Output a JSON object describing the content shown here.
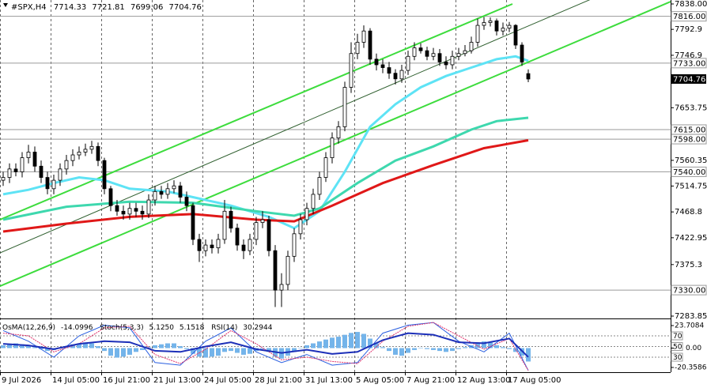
{
  "chart_data": {
    "type": "candlestick",
    "symbol": "#SPX,H4",
    "xlim": [
      -0.5,
      105.5
    ],
    "x_labels": [
      {
        "value": -0.5,
        "label": "9 Jul 2026"
      },
      {
        "value": 7.5,
        "label": "14 Jul 05:00"
      },
      {
        "value": 15.5,
        "label": "16 Jul 21:00"
      },
      {
        "value": 23.5,
        "label": "21 Jul 13:00"
      },
      {
        "value": 31.5,
        "label": "24 Jul 05:00"
      },
      {
        "value": 39.5,
        "label": "28 Jul 21:00"
      },
      {
        "value": 47.5,
        "label": "31 Jul 13:00"
      },
      {
        "value": 55.5,
        "label": "5 Aug 05:00"
      },
      {
        "value": 63.5,
        "label": "7 Aug 21:00"
      },
      {
        "value": 71.5,
        "label": "12 Aug 13:00"
      },
      {
        "value": 79.5,
        "label": "17 Aug 05:00"
      }
    ],
    "ylim": [
      7283.85,
      7838
    ],
    "yticks": [
      {
        "value": 7838,
        "label": "7838.00"
      },
      7792.9,
      7746.9,
      7653.75,
      7560.35,
      7514.75,
      7468.8,
      7422.95,
      7375.3,
      7283.85
    ],
    "levels": [
      {
        "value": 7816,
        "label": "7816.00"
      },
      {
        "value": 7733,
        "label": "7733.00"
      },
      {
        "value": 7615,
        "label": "7615.00"
      },
      {
        "value": 7598,
        "label": "7598.00"
      },
      {
        "value": 7540,
        "label": "7540.00"
      },
      {
        "value": 7330,
        "label": "7330.00"
      }
    ],
    "candle_color": "#000000",
    "open": [
      7525,
      7530,
      7545,
      7540,
      7565,
      7575,
      7550,
      7530,
      7510,
      7525,
      7545,
      7560,
      7570,
      7575,
      7580,
      7585,
      7560,
      7510,
      7480,
      7470,
      7465,
      7475,
      7470,
      7465,
      7490,
      7505,
      7500,
      7510,
      7515,
      7495,
      7480,
      7420,
      7400,
      7410,
      7405,
      7420,
      7470,
      7440,
      7410,
      7400,
      7420,
      7450,
      7455,
      7400,
      7330,
      7340,
      7390,
      7430,
      7455,
      7475,
      7500,
      7530,
      7565,
      7600,
      7620,
      7690,
      7750,
      7770,
      7790,
      7740,
      7730,
      7725,
      7715,
      7705,
      7720,
      7745,
      7760,
      7755,
      7745,
      7750,
      7735,
      7730,
      7745,
      7750,
      7755,
      7770,
      7800,
      7805,
      7808,
      7790,
      7795,
      7800,
      7765,
      7714.33
    ],
    "high": [
      7540,
      7555,
      7555,
      7575,
      7588,
      7585,
      7560,
      7540,
      7535,
      7555,
      7570,
      7580,
      7585,
      7590,
      7595,
      7592,
      7565,
      7515,
      7490,
      7480,
      7485,
      7485,
      7480,
      7500,
      7515,
      7515,
      7520,
      7525,
      7522,
      7505,
      7485,
      7430,
      7420,
      7420,
      7430,
      7490,
      7478,
      7448,
      7420,
      7430,
      7460,
      7470,
      7462,
      7410,
      7360,
      7400,
      7440,
      7465,
      7485,
      7510,
      7540,
      7575,
      7610,
      7630,
      7700,
      7770,
      7785,
      7800,
      7795,
      7750,
      7740,
      7735,
      7722,
      7730,
      7755,
      7770,
      7768,
      7762,
      7760,
      7758,
      7745,
      7755,
      7760,
      7765,
      7780,
      7812,
      7815,
      7814,
      7812,
      7805,
      7806,
      7802,
      7770,
      7721.81
    ],
    "low": [
      7515,
      7520,
      7532,
      7530,
      7555,
      7540,
      7520,
      7500,
      7500,
      7515,
      7535,
      7550,
      7562,
      7568,
      7572,
      7550,
      7500,
      7470,
      7462,
      7455,
      7455,
      7460,
      7455,
      7458,
      7480,
      7492,
      7492,
      7502,
      7485,
      7470,
      7410,
      7380,
      7390,
      7395,
      7395,
      7412,
      7432,
      7400,
      7385,
      7392,
      7410,
      7440,
      7390,
      7300,
      7300,
      7330,
      7380,
      7420,
      7445,
      7465,
      7490,
      7522,
      7555,
      7590,
      7612,
      7680,
      7740,
      7760,
      7730,
      7720,
      7715,
      7705,
      7695,
      7698,
      7712,
      7738,
      7750,
      7738,
      7738,
      7728,
      7722,
      7722,
      7738,
      7745,
      7750,
      7762,
      7792,
      7798,
      7782,
      7782,
      7788,
      7758,
      7728,
      7699.06
    ],
    "close": [
      7530,
      7545,
      7540,
      7565,
      7575,
      7550,
      7530,
      7510,
      7525,
      7545,
      7560,
      7570,
      7575,
      7580,
      7585,
      7560,
      7510,
      7480,
      7470,
      7465,
      7475,
      7470,
      7465,
      7490,
      7505,
      7500,
      7510,
      7515,
      7495,
      7480,
      7420,
      7400,
      7410,
      7405,
      7420,
      7470,
      7440,
      7410,
      7400,
      7420,
      7450,
      7455,
      7400,
      7330,
      7340,
      7390,
      7430,
      7455,
      7475,
      7500,
      7530,
      7565,
      7600,
      7620,
      7690,
      7750,
      7770,
      7790,
      7740,
      7730,
      7725,
      7715,
      7705,
      7720,
      7745,
      7760,
      7755,
      7745,
      7750,
      7735,
      7730,
      7745,
      7750,
      7755,
      7770,
      7800,
      7805,
      7808,
      7790,
      7795,
      7800,
      7765,
      7735,
      7704.76
    ],
    "moving_averages": [
      {
        "color": "#5ee3f5",
        "x": [
          0,
          4,
          8,
          12,
          16,
          20,
          26,
          30,
          36,
          42,
          46,
          50,
          54,
          58,
          62,
          66,
          70,
          74,
          78,
          81,
          83
        ],
        "values": [
          7500,
          7508,
          7520,
          7530,
          7525,
          7510,
          7505,
          7495,
          7480,
          7460,
          7440,
          7470,
          7540,
          7620,
          7660,
          7690,
          7710,
          7725,
          7740,
          7745,
          7737
        ]
      },
      {
        "color": "#3ed8ae",
        "x": [
          0,
          10,
          20,
          30,
          40,
          46,
          50,
          56,
          62,
          68,
          74,
          78,
          83
        ],
        "values": [
          7455,
          7478,
          7487,
          7485,
          7470,
          7462,
          7475,
          7520,
          7560,
          7585,
          7615,
          7630,
          7636
        ]
      },
      {
        "color": "#e01818",
        "x": [
          0,
          10,
          20,
          30,
          40,
          46,
          52,
          60,
          68,
          76,
          83
        ],
        "values": [
          7434,
          7448,
          7460,
          7465,
          7455,
          7452,
          7480,
          7520,
          7552,
          7582,
          7596
        ]
      }
    ],
    "channels": [
      {
        "color": "#3ddc3d",
        "x": [
          -0.5,
          80.5
        ],
        "values": [
          7455,
          7838
        ]
      },
      {
        "color": "#3ddc3d",
        "x": [
          -0.5,
          105.5
        ],
        "values": [
          7337,
          7842
        ]
      },
      {
        "color": "#2f5f2f",
        "x": [
          -0.5,
          80.5,
          94.5
        ],
        "values": [
          7396,
          7787,
          7854
        ]
      }
    ],
    "indicator": {
      "ylim": [
        -20.3586,
        23.7084
      ],
      "yticks": [
        23.7084,
        {
          "value": 0,
          "label": "0.00"
        },
        -20.3586
      ],
      "y2lim": [
        0,
        100
      ],
      "levels": [
        70,
        50,
        30
      ],
      "osma": {
        "name": "OsMA(12,26,9)",
        "color": "#74b4ea",
        "values": [
          3,
          4,
          5,
          4,
          3,
          1,
          -1,
          -3,
          -2,
          0,
          2,
          4,
          5,
          6,
          5,
          2,
          -3,
          -8,
          -10,
          -9,
          -7,
          -4,
          -2,
          1,
          3,
          4,
          5,
          5,
          2,
          -1,
          -6,
          -9,
          -10,
          -9,
          -8,
          -4,
          -3,
          -5,
          -7,
          -6,
          -3,
          -1,
          -4,
          -9,
          -11,
          -8,
          -4,
          0,
          3,
          5,
          7,
          9,
          11,
          12,
          14,
          16,
          17,
          15,
          10,
          5,
          1,
          -3,
          -7,
          -8,
          -5,
          -2,
          0,
          -1,
          -2,
          -3,
          -4,
          -3,
          -1,
          1,
          3,
          6,
          7,
          6,
          3,
          1,
          -1,
          -4,
          -8,
          -14.0996
        ]
      },
      "stoch": {
        "name": "Stoch(5,3,3)",
        "x": [
          0,
          4,
          8,
          12,
          16,
          20,
          24,
          28,
          32,
          36,
          40,
          44,
          48,
          52,
          56,
          60,
          64,
          68,
          72,
          76,
          80,
          83
        ],
        "main": [
          80,
          60,
          30,
          70,
          90,
          85,
          20,
          15,
          60,
          85,
          40,
          20,
          35,
          15,
          20,
          75,
          90,
          95,
          60,
          40,
          75,
          5.125
        ],
        "main_label": "5.1250",
        "main_color": "#2a5fe0",
        "signal": [
          75,
          70,
          40,
          55,
          85,
          88,
          35,
          18,
          45,
          80,
          55,
          25,
          30,
          22,
          18,
          60,
          88,
          95,
          70,
          45,
          65,
          5.1518
        ],
        "signal_label": "5.1518",
        "signal_color": "#e0306a"
      },
      "rsi": {
        "name": "RSI(14)",
        "color": "#1c2fb8",
        "x": [
          0,
          4,
          8,
          12,
          16,
          20,
          24,
          28,
          32,
          36,
          40,
          44,
          48,
          52,
          56,
          60,
          64,
          68,
          72,
          76,
          80,
          83
        ],
        "values": [
          55,
          52,
          45,
          55,
          60,
          58,
          42,
          40,
          50,
          58,
          45,
          38,
          44,
          36,
          40,
          62,
          75,
          72,
          58,
          56,
          65,
          30.2944
        ]
      }
    }
  }
}
